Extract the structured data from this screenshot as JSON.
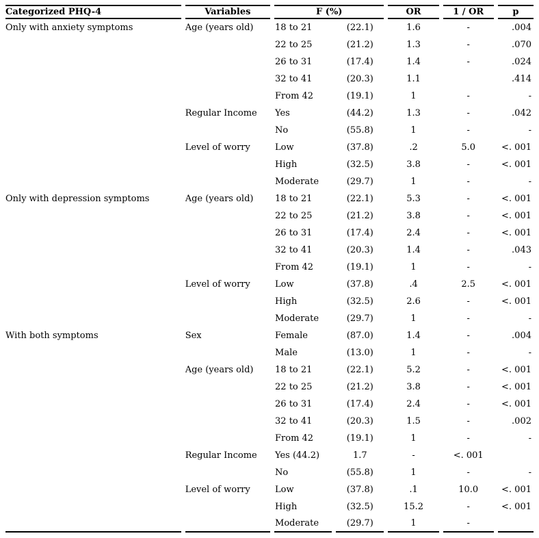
{
  "colors": {
    "background": "#ffffff",
    "text": "#000000",
    "rule": "#000000"
  },
  "table": {
    "headers": {
      "categorized_phq4": "Categorized PHQ-4",
      "variables": "Variables",
      "f_percent": "F (%)",
      "or": "OR",
      "one_over_or": "1 / OR",
      "p": "p"
    },
    "groups": [
      "Only with anxiety symptoms",
      "Only with depression symptoms",
      "With both symptoms"
    ],
    "rows": [
      [
        "Only with anxiety symptoms",
        "Age (years old)",
        "18 to 21",
        "(22.1)",
        "1.6",
        "-",
        ".004"
      ],
      [
        "",
        "",
        "22 to 25",
        "(21.2)",
        "1.3",
        "-",
        ".070"
      ],
      [
        "",
        "",
        "26 to 31",
        "(17.4)",
        "1.4",
        "-",
        ".024"
      ],
      [
        "",
        "",
        "32 to 41",
        "(20.3)",
        "1.1",
        "",
        ".414"
      ],
      [
        "",
        "",
        "From 42",
        "(19.1)",
        "1",
        "-",
        "-"
      ],
      [
        "",
        "Regular Income",
        "Yes",
        "(44.2)",
        "1.3",
        "-",
        ".042"
      ],
      [
        "",
        "",
        "No",
        "(55.8)",
        "1",
        "-",
        "-"
      ],
      [
        "",
        "Level of worry",
        "Low",
        "(37.8)",
        ".2",
        "5.0",
        "<. 001"
      ],
      [
        "",
        "",
        "High",
        "(32.5)",
        "3.8",
        "-",
        "<. 001"
      ],
      [
        "",
        "",
        "Moderate",
        "(29.7)",
        "1",
        "-",
        "-"
      ],
      [
        "Only with depression symptoms",
        "Age (years old)",
        "18 to 21",
        "(22.1)",
        "5.3",
        "-",
        "<. 001"
      ],
      [
        "",
        "",
        "22 to 25",
        "(21.2)",
        "3.8",
        "-",
        "<. 001"
      ],
      [
        "",
        "",
        "26 to 31",
        "(17.4)",
        "2.4",
        "-",
        "<. 001"
      ],
      [
        "",
        "",
        "32 to 41",
        "(20.3)",
        "1.4",
        "-",
        ".043"
      ],
      [
        "",
        "",
        "From 42",
        "(19.1)",
        "1",
        "-",
        "-"
      ],
      [
        "",
        "Level of worry",
        "Low",
        "(37.8)",
        ".4",
        "2.5",
        "<. 001"
      ],
      [
        "",
        "",
        "High",
        "(32.5)",
        "2.6",
        "-",
        "<. 001"
      ],
      [
        "",
        "",
        "Moderate",
        "(29.7)",
        "1",
        "-",
        "-"
      ],
      [
        "With both symptoms",
        "Sex",
        "Female",
        "(87.0)",
        "1.4",
        "-",
        ".004"
      ],
      [
        "",
        "",
        "Male",
        "(13.0)",
        "1",
        "-",
        "-"
      ],
      [
        "",
        "Age (years old)",
        "18 to 21",
        "(22.1)",
        "5.2",
        "-",
        "<. 001"
      ],
      [
        "",
        "",
        "22 to 25",
        "(21.2)",
        "3.8",
        "-",
        "<. 001"
      ],
      [
        "",
        "",
        "26 to 31",
        "(17.4)",
        "2.4",
        "-",
        "<. 001"
      ],
      [
        "",
        "",
        "32 to 41",
        "(20.3)",
        "1.5",
        "-",
        ".002"
      ],
      [
        "",
        "",
        "From 42",
        "(19.1)",
        "1",
        "-",
        "-"
      ],
      [
        "",
        "Regular Income",
        "Yes (44.2)",
        "1.7",
        "-",
        "<. 001",
        ""
      ],
      [
        "",
        "",
        "No",
        "(55.8)",
        "1",
        "-",
        "-"
      ],
      [
        "",
        "Level of worry",
        "Low",
        "(37.8)",
        ".1",
        "10.0",
        "<. 001"
      ],
      [
        "",
        "",
        "High",
        "(32.5)",
        "15.2",
        "-",
        "<. 001"
      ],
      [
        "",
        "",
        "Moderate",
        "(29.7)",
        "1",
        "-",
        ""
      ]
    ]
  }
}
